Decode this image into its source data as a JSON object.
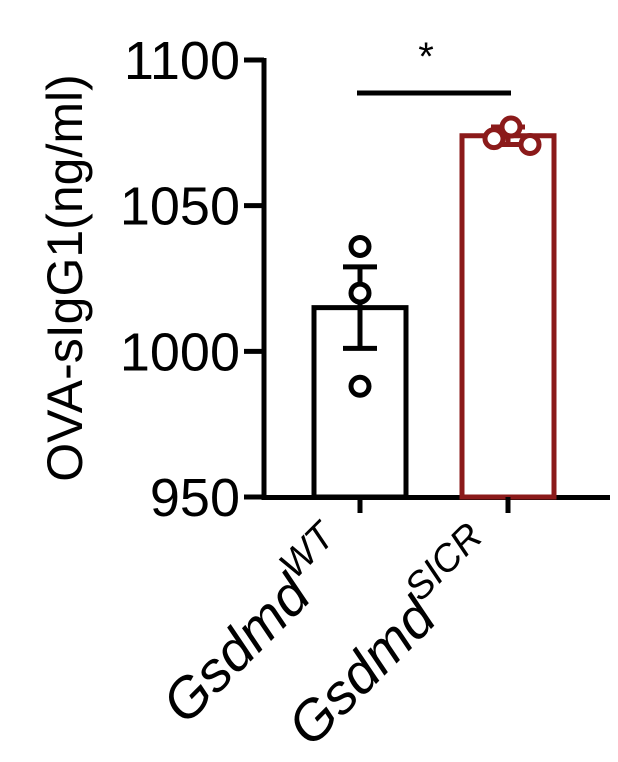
{
  "chart_data": {
    "type": "bar",
    "ylabel": "OVA-sIgG1(ng/ml)",
    "ylim": [
      950,
      1100
    ],
    "yticks": [
      950,
      1000,
      1050,
      1100
    ],
    "grid": false,
    "categories": [
      {
        "base": "Gsdmd",
        "sup": "WT"
      },
      {
        "base": "Gsdmd",
        "sup": "SICR"
      }
    ],
    "values": [
      1015,
      1074
    ],
    "errors": [
      14,
      3
    ],
    "points": [
      [
        1036,
        1020,
        988
      ],
      [
        1077,
        1073,
        1071
      ]
    ],
    "colors": [
      "#000000",
      "#8b1a1a"
    ],
    "significance": {
      "label": "*",
      "between": [
        0,
        1
      ]
    }
  }
}
